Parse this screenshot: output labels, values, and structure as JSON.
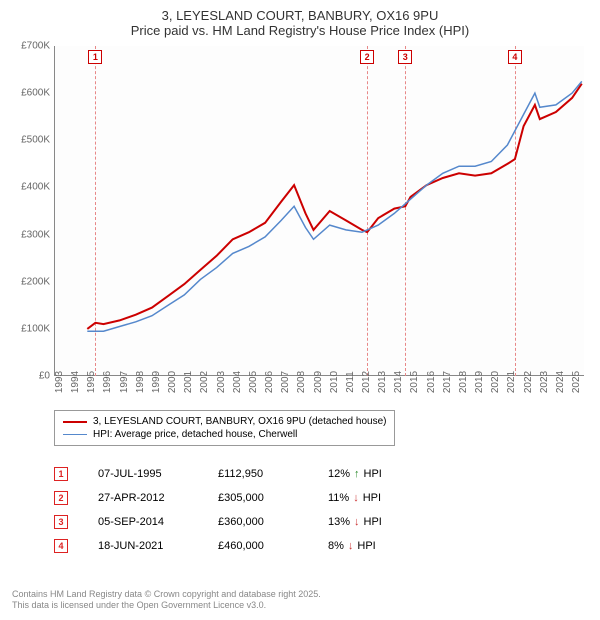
{
  "title_line1": "3, LEYESLAND COURT, BANBURY, OX16 9PU",
  "title_line2": "Price paid vs. HM Land Registry's House Price Index (HPI)",
  "chart": {
    "type": "line",
    "background_color": "#fdfdfd",
    "grid_color": "#d8d8d8",
    "axis_color": "#888888",
    "ylim": [
      0,
      700000
    ],
    "yticks": [
      0,
      100000,
      200000,
      300000,
      400000,
      500000,
      600000,
      700000
    ],
    "ytick_labels": [
      "£0",
      "£100K",
      "£200K",
      "£300K",
      "£400K",
      "£500K",
      "£600K",
      "£700K"
    ],
    "xlim": [
      1993,
      2025.8
    ],
    "xticks": [
      1993,
      1994,
      1995,
      1996,
      1997,
      1998,
      1999,
      2000,
      2001,
      2002,
      2003,
      2004,
      2005,
      2006,
      2007,
      2008,
      2009,
      2010,
      2011,
      2012,
      2013,
      2014,
      2015,
      2016,
      2017,
      2018,
      2019,
      2020,
      2021,
      2022,
      2023,
      2024,
      2025
    ],
    "tick_fontsize": 10,
    "tick_color": "#666666",
    "series": [
      {
        "name": "red",
        "label": "3, LEYESLAND COURT, BANBURY, OX16 9PU (detached house)",
        "color": "#cc0000",
        "line_width": 2,
        "data": [
          [
            1995.0,
            100000
          ],
          [
            1995.5,
            112950
          ],
          [
            1996,
            110000
          ],
          [
            1997,
            118000
          ],
          [
            1998,
            130000
          ],
          [
            1999,
            145000
          ],
          [
            2000,
            170000
          ],
          [
            2001,
            195000
          ],
          [
            2002,
            225000
          ],
          [
            2003,
            255000
          ],
          [
            2004,
            290000
          ],
          [
            2005,
            305000
          ],
          [
            2006,
            325000
          ],
          [
            2007,
            370000
          ],
          [
            2007.8,
            405000
          ],
          [
            2008.5,
            345000
          ],
          [
            2009,
            310000
          ],
          [
            2010,
            350000
          ],
          [
            2011,
            330000
          ],
          [
            2012,
            310000
          ],
          [
            2012.32,
            305000
          ],
          [
            2013,
            335000
          ],
          [
            2014,
            355000
          ],
          [
            2014.68,
            360000
          ],
          [
            2015,
            380000
          ],
          [
            2016,
            405000
          ],
          [
            2017,
            420000
          ],
          [
            2018,
            430000
          ],
          [
            2019,
            425000
          ],
          [
            2020,
            430000
          ],
          [
            2021,
            450000
          ],
          [
            2021.46,
            460000
          ],
          [
            2022,
            530000
          ],
          [
            2022.7,
            575000
          ],
          [
            2023,
            545000
          ],
          [
            2024,
            560000
          ],
          [
            2025,
            590000
          ],
          [
            2025.6,
            620000
          ]
        ]
      },
      {
        "name": "blue",
        "label": "HPI: Average price, detached house, Cherwell",
        "color": "#5588cc",
        "line_width": 1.5,
        "data": [
          [
            1995.0,
            95000
          ],
          [
            1996,
            95000
          ],
          [
            1997,
            105000
          ],
          [
            1998,
            115000
          ],
          [
            1999,
            128000
          ],
          [
            2000,
            150000
          ],
          [
            2001,
            172000
          ],
          [
            2002,
            205000
          ],
          [
            2003,
            230000
          ],
          [
            2004,
            260000
          ],
          [
            2005,
            275000
          ],
          [
            2006,
            295000
          ],
          [
            2007,
            330000
          ],
          [
            2007.8,
            360000
          ],
          [
            2008.5,
            315000
          ],
          [
            2009,
            290000
          ],
          [
            2010,
            320000
          ],
          [
            2011,
            310000
          ],
          [
            2012,
            305000
          ],
          [
            2013,
            320000
          ],
          [
            2014,
            345000
          ],
          [
            2015,
            375000
          ],
          [
            2016,
            405000
          ],
          [
            2017,
            430000
          ],
          [
            2018,
            445000
          ],
          [
            2019,
            445000
          ],
          [
            2020,
            455000
          ],
          [
            2021,
            490000
          ],
          [
            2022,
            555000
          ],
          [
            2022.7,
            600000
          ],
          [
            2023,
            570000
          ],
          [
            2024,
            575000
          ],
          [
            2025,
            600000
          ],
          [
            2025.6,
            625000
          ]
        ]
      }
    ],
    "markers": [
      {
        "n": "1",
        "year": 1995.5,
        "color": "#cc0000"
      },
      {
        "n": "2",
        "year": 2012.32,
        "color": "#cc0000"
      },
      {
        "n": "3",
        "year": 2014.68,
        "color": "#cc0000"
      },
      {
        "n": "4",
        "year": 2021.46,
        "color": "#cc0000"
      }
    ],
    "marker_vline_color": "#e88888"
  },
  "legend": {
    "items": [
      {
        "color": "#cc0000",
        "thickness": 2,
        "label": "3, LEYESLAND COURT, BANBURY, OX16 9PU (detached house)"
      },
      {
        "color": "#5588cc",
        "thickness": 1.5,
        "label": "HPI: Average price, detached house, Cherwell"
      }
    ]
  },
  "sales": [
    {
      "n": "1",
      "date": "07-JUL-1995",
      "price": "£112,950",
      "pct": "12%",
      "arrow": "↑",
      "suffix": "HPI",
      "arrow_color": "#2a8a2a"
    },
    {
      "n": "2",
      "date": "27-APR-2012",
      "price": "£305,000",
      "pct": "11%",
      "arrow": "↓",
      "suffix": "HPI",
      "arrow_color": "#cc3333"
    },
    {
      "n": "3",
      "date": "05-SEP-2014",
      "price": "£360,000",
      "pct": "13%",
      "arrow": "↓",
      "suffix": "HPI",
      "arrow_color": "#cc3333"
    },
    {
      "n": "4",
      "date": "18-JUN-2021",
      "price": "£460,000",
      "pct": "8%",
      "arrow": "↓",
      "suffix": "HPI",
      "arrow_color": "#cc3333"
    }
  ],
  "footer_line1": "Contains HM Land Registry data © Crown copyright and database right 2025.",
  "footer_line2": "This data is licensed under the Open Government Licence v3.0."
}
